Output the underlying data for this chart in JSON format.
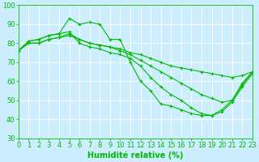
{
  "xlabel": "Humidité relative (%)",
  "background_color": "#cceeff",
  "grid_color": "#ffffff",
  "line_color": "#00bb00",
  "x": [
    0,
    1,
    2,
    3,
    4,
    5,
    6,
    7,
    8,
    9,
    10,
    11,
    12,
    13,
    14,
    15,
    16,
    17,
    18,
    19,
    20,
    21,
    22,
    23
  ],
  "series": [
    [
      76,
      81,
      82,
      84,
      85,
      93,
      90,
      91,
      90,
      82,
      82,
      70,
      60,
      55,
      48,
      47,
      45,
      43,
      42,
      42,
      45,
      50,
      59,
      65
    ],
    [
      76,
      81,
      82,
      84,
      85,
      86,
      80,
      78,
      77,
      75,
      74,
      72,
      68,
      62,
      57,
      53,
      50,
      46,
      43,
      42,
      44,
      49,
      57,
      64
    ],
    [
      76,
      80,
      80,
      82,
      83,
      85,
      82,
      80,
      79,
      78,
      76,
      74,
      71,
      68,
      65,
      62,
      59,
      56,
      53,
      51,
      49,
      50,
      58,
      65
    ],
    [
      76,
      80,
      80,
      82,
      83,
      84,
      82,
      80,
      79,
      78,
      77,
      75,
      74,
      72,
      70,
      68,
      67,
      66,
      65,
      64,
      63,
      62,
      63,
      65
    ]
  ],
  "ylim": [
    30,
    100
  ],
  "xlim": [
    0,
    23
  ],
  "yticks": [
    30,
    40,
    50,
    60,
    70,
    80,
    90,
    100
  ],
  "xticks": [
    0,
    1,
    2,
    3,
    4,
    5,
    6,
    7,
    8,
    9,
    10,
    11,
    12,
    13,
    14,
    15,
    16,
    17,
    18,
    19,
    20,
    21,
    22,
    23
  ],
  "xlabel_fontsize": 7,
  "tick_fontsize": 6,
  "linewidth": 0.8,
  "markersize": 3
}
